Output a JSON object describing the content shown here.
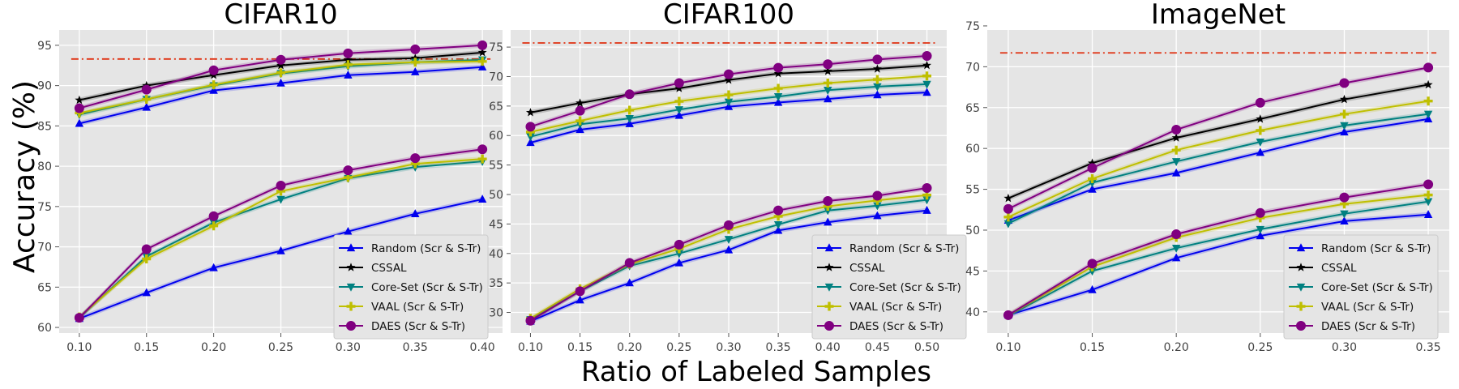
{
  "figure": {
    "ylabel": "Accuracy (%)",
    "xlabel": "Ratio of Labeled Samples"
  },
  "series_styles": [
    {
      "name": "Random (Scr & S-Tr)",
      "color": "#0000ee",
      "marker": "triangle-up"
    },
    {
      "name": "CSSAL",
      "color": "#000000",
      "marker": "star"
    },
    {
      "name": "Core-Set (Scr & S-Tr)",
      "color": "#008080",
      "marker": "triangle-down"
    },
    {
      "name": "VAAL (Scr & S-Tr)",
      "color": "#bfbf00",
      "marker": "plus"
    },
    {
      "name": "DAES (Scr & S-Tr)",
      "color": "#800080",
      "marker": "circle"
    }
  ],
  "reference_line_color": "#e03010",
  "chart_data": [
    {
      "type": "line",
      "title": "CIFAR10",
      "x": [
        0.1,
        0.15,
        0.2,
        0.25,
        0.3,
        0.35,
        0.4
      ],
      "xticks": [
        "0.10",
        "0.15",
        "0.20",
        "0.25",
        "0.30",
        "0.35",
        "0.40"
      ],
      "xlim": [
        0.085,
        0.415
      ],
      "ylim": [
        59.3,
        96.9
      ],
      "yticks": [
        60,
        65,
        70,
        75,
        80,
        85,
        90,
        95
      ],
      "grid": true,
      "legend": "lower-right",
      "reference_line": 93.3,
      "series": [
        {
          "name": "Random (Scr & S-Tr)",
          "values": [
            85.3,
            87.3,
            89.4,
            90.3,
            91.3,
            91.7,
            92.3
          ]
        },
        {
          "name": "CSSAL",
          "values": [
            88.2,
            90.0,
            91.3,
            92.5,
            93.2,
            93.4,
            94.1
          ]
        },
        {
          "name": "Core-Set (Scr & S-Tr)",
          "values": [
            86.4,
            88.3,
            90.0,
            91.5,
            92.4,
            92.9,
            93.2
          ]
        },
        {
          "name": "VAAL (Scr & S-Tr)",
          "values": [
            86.6,
            88.3,
            90.1,
            91.6,
            92.6,
            92.9,
            93.0
          ]
        },
        {
          "name": "DAES (Scr & S-Tr)",
          "values": [
            87.2,
            89.5,
            91.9,
            93.2,
            94.0,
            94.5,
            95.0
          ]
        },
        {
          "name": "Random (Scr & S-Tr)",
          "values": [
            61.1,
            64.3,
            67.4,
            69.5,
            71.9,
            74.1,
            75.9
          ]
        },
        {
          "name": "Core-Set (Scr & S-Tr)",
          "values": [
            61.2,
            68.8,
            73.0,
            75.9,
            78.5,
            79.9,
            80.6
          ]
        },
        {
          "name": "VAAL (Scr & S-Tr)",
          "values": [
            61.3,
            68.5,
            72.6,
            76.9,
            78.6,
            80.3,
            80.9
          ]
        },
        {
          "name": "DAES (Scr & S-Tr)",
          "values": [
            61.2,
            69.7,
            73.8,
            77.6,
            79.5,
            81.0,
            82.1
          ]
        }
      ]
    },
    {
      "type": "line",
      "title": "CIFAR100",
      "x": [
        0.1,
        0.15,
        0.2,
        0.25,
        0.3,
        0.35,
        0.4,
        0.45,
        0.5
      ],
      "xticks": [
        "0.10",
        "0.15",
        "0.20",
        "0.25",
        "0.30",
        "0.35",
        "0.40",
        "0.45",
        "0.50"
      ],
      "xlim": [
        0.08,
        0.52
      ],
      "ylim": [
        26.5,
        77.9
      ],
      "yticks": [
        30,
        35,
        40,
        45,
        50,
        55,
        60,
        65,
        70,
        75
      ],
      "grid": true,
      "legend": "lower-right",
      "reference_line": 75.7,
      "series": [
        {
          "name": "Random (Scr & S-Tr)",
          "values": [
            58.8,
            61.0,
            62.0,
            63.4,
            64.9,
            65.6,
            66.2,
            66.9,
            67.3
          ]
        },
        {
          "name": "CSSAL",
          "values": [
            63.9,
            65.5,
            67.0,
            68.0,
            69.4,
            70.5,
            70.9,
            71.3,
            71.9
          ]
        },
        {
          "name": "Core-Set (Scr & S-Tr)",
          "values": [
            59.8,
            61.9,
            62.9,
            64.4,
            65.7,
            66.6,
            67.7,
            68.3,
            68.7
          ]
        },
        {
          "name": "VAAL (Scr & S-Tr)",
          "values": [
            60.6,
            62.5,
            64.3,
            65.8,
            66.9,
            68.0,
            68.9,
            69.5,
            70.1
          ]
        },
        {
          "name": "DAES (Scr & S-Tr)",
          "values": [
            61.5,
            64.2,
            67.0,
            68.9,
            70.4,
            71.5,
            72.1,
            72.9,
            73.5
          ]
        },
        {
          "name": "Random (Scr & S-Tr)",
          "values": [
            28.5,
            32.1,
            35.0,
            38.4,
            40.6,
            43.9,
            45.3,
            46.4,
            47.3
          ]
        },
        {
          "name": "Core-Set (Scr & S-Tr)",
          "values": [
            28.8,
            33.6,
            37.9,
            40.0,
            42.4,
            44.9,
            47.3,
            48.1,
            49.1
          ]
        },
        {
          "name": "VAAL (Scr & S-Tr)",
          "values": [
            29.0,
            34.0,
            38.2,
            40.8,
            44.1,
            46.3,
            48.0,
            49.0,
            49.9
          ]
        },
        {
          "name": "DAES (Scr & S-Tr)",
          "values": [
            28.6,
            33.6,
            38.4,
            41.5,
            44.8,
            47.3,
            48.9,
            49.8,
            51.1
          ]
        }
      ]
    },
    {
      "type": "line",
      "title": "ImageNet",
      "x": [
        0.1,
        0.15,
        0.2,
        0.25,
        0.3,
        0.35
      ],
      "xticks": [
        "0.10",
        "0.15",
        "0.20",
        "0.25",
        "0.30",
        "0.35"
      ],
      "xlim": [
        0.0875,
        0.3625
      ],
      "ylim": [
        37.4,
        74.5
      ],
      "yticks": [
        40,
        45,
        50,
        55,
        60,
        65,
        70,
        75
      ],
      "grid": true,
      "legend": "lower-right",
      "reference_line": 71.7,
      "series": [
        {
          "name": "Random (Scr & S-Tr)",
          "values": [
            51.2,
            55.0,
            57.0,
            59.5,
            62.0,
            63.6
          ]
        },
        {
          "name": "CSSAL",
          "values": [
            53.9,
            58.2,
            61.3,
            63.6,
            66.0,
            67.8
          ]
        },
        {
          "name": "Core-Set (Scr & S-Tr)",
          "values": [
            50.8,
            55.8,
            58.4,
            60.8,
            62.8,
            64.2
          ]
        },
        {
          "name": "VAAL (Scr & S-Tr)",
          "values": [
            51.6,
            56.3,
            59.8,
            62.2,
            64.2,
            65.8
          ]
        },
        {
          "name": "DAES (Scr & S-Tr)",
          "values": [
            52.6,
            57.6,
            62.3,
            65.6,
            68.0,
            69.9
          ]
        },
        {
          "name": "Random (Scr & S-Tr)",
          "values": [
            39.6,
            42.7,
            46.6,
            49.3,
            51.1,
            51.9
          ]
        },
        {
          "name": "Core-Set (Scr & S-Tr)",
          "values": [
            39.5,
            45.0,
            47.8,
            50.1,
            52.0,
            53.5
          ]
        },
        {
          "name": "VAAL (Scr & S-Tr)",
          "values": [
            39.6,
            45.5,
            49.1,
            51.5,
            53.2,
            54.3
          ]
        },
        {
          "name": "DAES (Scr & S-Tr)",
          "values": [
            39.6,
            45.9,
            49.5,
            52.1,
            54.0,
            55.6
          ]
        }
      ]
    }
  ]
}
